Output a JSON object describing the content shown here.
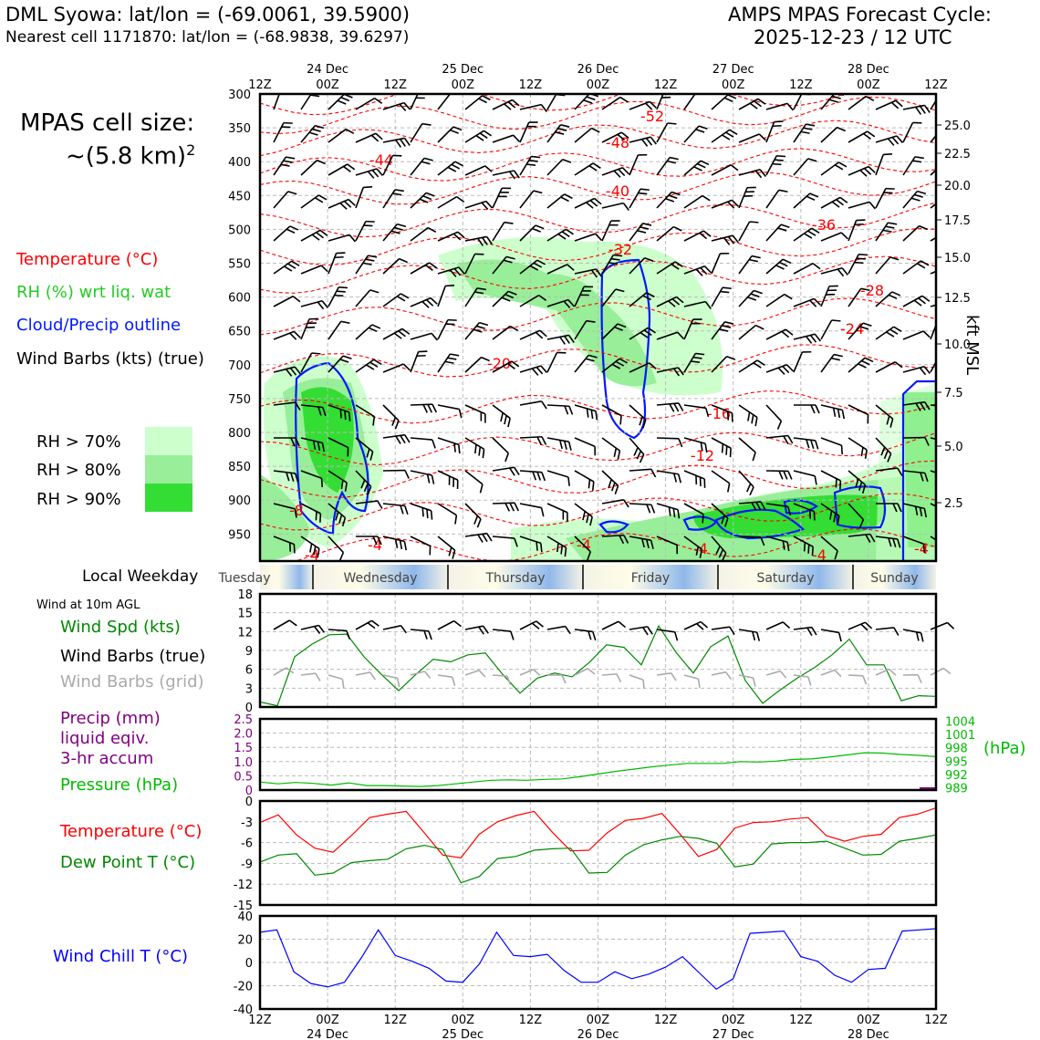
{
  "header": {
    "station": "DML Syowa: lat/lon = (-69.0061, 39.5900)",
    "nearest_cell": "Nearest cell 1171870: lat/lon = (-68.9838, 39.6297)",
    "cycle_title": "AMPS MPAS Forecast Cycle:",
    "cycle_time": "2025-12-23 / 12 UTC",
    "cell_size_label": "MPAS cell size:",
    "cell_size_value": "~(5.8 km)",
    "cell_size_exp": "2"
  },
  "legend": {
    "temperature": "Temperature (°C)",
    "rh": "RH (%) wrt liq. wat",
    "cloud": "Cloud/Precip outline",
    "wind_barbs": "Wind Barbs (kts) (true)",
    "rh70": "RH > 70%",
    "rh80": "RH > 80%",
    "rh90": "RH > 90%",
    "kft": "kft MSL",
    "local_weekday": "Local Weekday",
    "wind_10m": "Wind at 10m AGL",
    "wind_spd": "Wind Spd (kts)",
    "wind_barbs_true": "Wind Barbs (true)",
    "wind_barbs_grid": "Wind Barbs (grid)",
    "precip1": "Precip (mm)",
    "precip2": "liquid eqiv.",
    "precip3": "3-hr accum",
    "pressure": "Pressure (hPa)",
    "hpa": "(hPa)",
    "temp2": "Temperature (°C)",
    "dewpoint": "Dew Point T (°C)",
    "windchill": "Wind Chill T (°C)"
  },
  "colors": {
    "temp": "#ff0000",
    "rh": "#22cc22",
    "cloud": "#0018ff",
    "grid": "#b0b0b0",
    "precip": "#800080",
    "pressure": "#00bb00",
    "dew": "#008800",
    "chill": "#0000ff",
    "rh70": "#ccffcc",
    "rh80": "#99ee99",
    "rh90": "#33dd33"
  },
  "chart_data": {
    "type": "line",
    "x_ticks_top": [
      "12Z",
      "00Z",
      "12Z",
      "00Z",
      "12Z",
      "00Z",
      "12Z",
      "00Z",
      "12Z",
      "00Z",
      "12Z"
    ],
    "x_dates": [
      "24 Dec",
      "25 Dec",
      "26 Dec",
      "27 Dec",
      "28 Dec"
    ],
    "weekdays": [
      "Tuesday",
      "Wednesday",
      "Thursday",
      "Friday",
      "Saturday",
      "Sunday"
    ],
    "cross_section": {
      "y_ticks": [
        "300",
        "350",
        "400",
        "450",
        "500",
        "550",
        "600",
        "650",
        "700",
        "750",
        "800",
        "850",
        "900",
        "950"
      ],
      "kft_ticks": [
        "25.0",
        "22.5",
        "20.0",
        "17.5",
        "15.0",
        "12.5",
        "10.0",
        "7.5",
        "5.0",
        "2.5"
      ],
      "temp_labels": [
        "-52",
        "-48",
        "-44",
        "-40",
        "-36",
        "-32",
        "-28",
        "-24",
        "-20",
        "-16",
        "-12",
        "-8",
        "-4",
        "-4",
        "-4",
        "-4",
        "-4",
        "-4"
      ]
    },
    "wind_speed": {
      "ylim": [
        0,
        18
      ],
      "yticks": [
        "0",
        "3",
        "6",
        "9",
        "12",
        "15",
        "18"
      ],
      "values": [
        0.8,
        0.2,
        8,
        10,
        11.5,
        11.6,
        8,
        5.2,
        2.6,
        5.2,
        7.6,
        7.2,
        8.3,
        8.6,
        5.2,
        2.2,
        4.6,
        5.4,
        4.8,
        7.1,
        9.9,
        9.5,
        6.7,
        12.9,
        8.7,
        5.4,
        9.6,
        11.3,
        4.2,
        0.6,
        2.7,
        4.6,
        6.3,
        8.3,
        10.8,
        6.7,
        6.7,
        1.0,
        1.8,
        1.7
      ]
    },
    "precip_pressure": {
      "precip_ylim": [
        0,
        2.5
      ],
      "precip_ticks": [
        "0",
        "0.5",
        "1.0",
        "1.5",
        "2.0",
        "2.5"
      ],
      "pressure_ticks": [
        "989",
        "992",
        "995",
        "998",
        "1001",
        "1004"
      ],
      "pressure_ylim": [
        988.5,
        1004.5
      ],
      "pressure": [
        990.3,
        989.9,
        990.2,
        990.0,
        989.6,
        990.1,
        989.5,
        989.5,
        989.4,
        989.3,
        989.5,
        989.9,
        990.3,
        990.7,
        990.8,
        990.7,
        990.9,
        991.0,
        991.5,
        992.1,
        992.7,
        993.2,
        993.7,
        994.1,
        994.5,
        994.5,
        994.5,
        994.9,
        994.8,
        995.0,
        995.4,
        995.5,
        995.9,
        996.4,
        996.9,
        996.8,
        996.5,
        996.3,
        996.0
      ]
    },
    "temperature": {
      "ylim": [
        -15,
        0
      ],
      "yticks": [
        "0",
        "-3",
        "-6",
        "-9",
        "-12",
        "-15"
      ],
      "temp": [
        -3.1,
        -2.0,
        -4.9,
        -6.8,
        -7.4,
        -5.0,
        -2.4,
        -1.9,
        -1.5,
        -4.6,
        -7.8,
        -8.2,
        -4.8,
        -3.0,
        -2.1,
        -1.5,
        -4.5,
        -7.2,
        -7.1,
        -4.6,
        -2.8,
        -2.5,
        -1.8,
        -4.8,
        -8.0,
        -7.0,
        -3.9,
        -3.1,
        -3.0,
        -2.6,
        -2.4,
        -5.0,
        -5.8,
        -5.1,
        -4.8,
        -2.4,
        -1.9,
        -1.0
      ],
      "dewpoint": [
        -8.8,
        -7.8,
        -7.6,
        -10.7,
        -10.4,
        -8.9,
        -8.6,
        -8.4,
        -6.9,
        -6.4,
        -7.0,
        -11.8,
        -10.9,
        -8.3,
        -8.0,
        -7.1,
        -6.9,
        -6.8,
        -10.4,
        -10.3,
        -7.8,
        -6.3,
        -5.6,
        -5.1,
        -5.4,
        -6.1,
        -9.5,
        -9.1,
        -6.2,
        -6.0,
        -6.0,
        -5.8,
        -6.8,
        -7.8,
        -7.7,
        -5.8,
        -5.4,
        -4.9
      ]
    },
    "wind_chill": {
      "ylim": [
        -40,
        40
      ],
      "yticks": [
        "40",
        "20",
        "0",
        "-20",
        "-40"
      ],
      "values": [
        26,
        28,
        -8,
        -18,
        -21,
        -17,
        4,
        28,
        6,
        1,
        -5,
        -16,
        -17,
        -1,
        26,
        6,
        5,
        7,
        -7,
        -17,
        -17,
        -8,
        -14,
        -10,
        -4,
        5,
        -9,
        -23,
        -14,
        25,
        26,
        27,
        5,
        1,
        -11,
        -17,
        -6,
        -5,
        27,
        28,
        29
      ]
    }
  }
}
